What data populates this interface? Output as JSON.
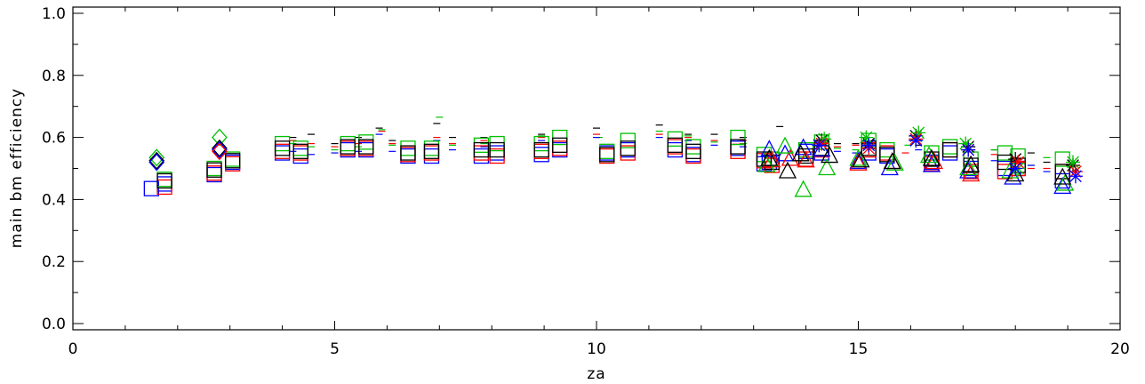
{
  "chart_data": {
    "type": "scatter",
    "title": "",
    "xlabel": "za",
    "ylabel": "main bm efficiency",
    "xlim": [
      0,
      20
    ],
    "ylim": [
      -0.02,
      1.02
    ],
    "xticks": [
      0,
      5,
      10,
      15,
      20
    ],
    "xtick_labels": [
      "0",
      "5",
      "10",
      "15",
      "20"
    ],
    "yticks": [
      0.0,
      0.2,
      0.4,
      0.6,
      0.8,
      1.0
    ],
    "ytick_labels": [
      "0.0",
      "0.2",
      "0.4",
      "0.6",
      "0.8",
      "1.0"
    ],
    "grid": false,
    "colors": {
      "black": "#000000",
      "red": "#ff0000",
      "green": "#00c000",
      "blue": "#0000ff"
    },
    "marker_series": [
      {
        "marker": "square",
        "color": "blue",
        "points": [
          [
            1.5,
            0.435
          ],
          [
            1.75,
            0.45
          ],
          [
            2.7,
            0.48
          ],
          [
            3.05,
            0.52
          ],
          [
            4.0,
            0.55
          ],
          [
            4.35,
            0.54
          ],
          [
            5.25,
            0.56
          ],
          [
            5.6,
            0.56
          ],
          [
            6.4,
            0.54
          ],
          [
            6.85,
            0.54
          ],
          [
            7.8,
            0.54
          ],
          [
            8.1,
            0.55
          ],
          [
            8.95,
            0.545
          ],
          [
            9.3,
            0.56
          ],
          [
            10.2,
            0.55
          ],
          [
            10.6,
            0.56
          ],
          [
            11.5,
            0.56
          ],
          [
            11.85,
            0.545
          ],
          [
            12.7,
            0.565
          ],
          [
            13.2,
            0.515
          ],
          [
            13.3,
            0.52
          ],
          [
            14.0,
            0.555
          ],
          [
            14.3,
            0.55
          ],
          [
            15.2,
            0.55
          ],
          [
            15.55,
            0.54
          ],
          [
            16.4,
            0.52
          ],
          [
            16.75,
            0.55
          ],
          [
            17.15,
            0.5
          ],
          [
            17.8,
            0.5
          ],
          [
            18.05,
            0.5
          ],
          [
            18.9,
            0.46
          ]
        ]
      },
      {
        "marker": "square",
        "color": "red",
        "points": [
          [
            1.75,
            0.44
          ],
          [
            2.7,
            0.485
          ],
          [
            3.05,
            0.515
          ],
          [
            4.0,
            0.555
          ],
          [
            4.35,
            0.55
          ],
          [
            5.25,
            0.565
          ],
          [
            5.6,
            0.565
          ],
          [
            6.4,
            0.545
          ],
          [
            6.85,
            0.55
          ],
          [
            7.8,
            0.55
          ],
          [
            8.1,
            0.54
          ],
          [
            8.95,
            0.555
          ],
          [
            9.3,
            0.565
          ],
          [
            10.2,
            0.54
          ],
          [
            10.6,
            0.55
          ],
          [
            11.5,
            0.57
          ],
          [
            11.85,
            0.54
          ],
          [
            12.7,
            0.555
          ],
          [
            13.2,
            0.525
          ],
          [
            13.35,
            0.51
          ],
          [
            14.0,
            0.53
          ],
          [
            14.3,
            0.56
          ],
          [
            15.2,
            0.56
          ],
          [
            15.55,
            0.55
          ],
          [
            16.4,
            0.515
          ],
          [
            16.75,
            0.56
          ],
          [
            17.15,
            0.49
          ],
          [
            17.8,
            0.49
          ],
          [
            18.05,
            0.5
          ],
          [
            18.9,
            0.49
          ]
        ]
      },
      {
        "marker": "square",
        "color": "green",
        "points": [
          [
            1.75,
            0.465
          ],
          [
            2.7,
            0.5
          ],
          [
            3.05,
            0.53
          ],
          [
            4.0,
            0.58
          ],
          [
            4.35,
            0.565
          ],
          [
            5.25,
            0.58
          ],
          [
            5.6,
            0.585
          ],
          [
            6.4,
            0.565
          ],
          [
            6.85,
            0.565
          ],
          [
            7.8,
            0.575
          ],
          [
            8.1,
            0.58
          ],
          [
            8.95,
            0.58
          ],
          [
            9.3,
            0.6
          ],
          [
            10.2,
            0.555
          ],
          [
            10.6,
            0.59
          ],
          [
            11.5,
            0.595
          ],
          [
            11.85,
            0.57
          ],
          [
            12.7,
            0.6
          ],
          [
            13.2,
            0.545
          ],
          [
            13.35,
            0.53
          ],
          [
            14.0,
            0.56
          ],
          [
            14.3,
            0.585
          ],
          [
            15.2,
            0.59
          ],
          [
            15.55,
            0.56
          ],
          [
            16.4,
            0.55
          ],
          [
            16.75,
            0.57
          ],
          [
            17.15,
            0.53
          ],
          [
            17.8,
            0.55
          ],
          [
            18.05,
            0.54
          ],
          [
            18.9,
            0.53
          ]
        ]
      },
      {
        "marker": "square",
        "color": "black",
        "points": [
          [
            1.75,
            0.46
          ],
          [
            2.7,
            0.495
          ],
          [
            3.05,
            0.525
          ],
          [
            4.0,
            0.565
          ],
          [
            4.35,
            0.555
          ],
          [
            5.25,
            0.57
          ],
          [
            5.6,
            0.57
          ],
          [
            6.4,
            0.55
          ],
          [
            6.85,
            0.555
          ],
          [
            7.8,
            0.56
          ],
          [
            8.1,
            0.56
          ],
          [
            8.95,
            0.56
          ],
          [
            9.3,
            0.575
          ],
          [
            10.2,
            0.545
          ],
          [
            10.6,
            0.565
          ],
          [
            11.5,
            0.575
          ],
          [
            11.85,
            0.555
          ],
          [
            12.7,
            0.57
          ],
          [
            13.2,
            0.53
          ],
          [
            13.35,
            0.52
          ],
          [
            14.0,
            0.54
          ],
          [
            14.3,
            0.565
          ],
          [
            15.2,
            0.565
          ],
          [
            15.55,
            0.545
          ],
          [
            16.4,
            0.53
          ],
          [
            16.75,
            0.56
          ],
          [
            17.15,
            0.51
          ],
          [
            17.8,
            0.52
          ],
          [
            18.05,
            0.51
          ],
          [
            18.9,
            0.49
          ]
        ]
      },
      {
        "marker": "diamond",
        "color": "green",
        "points": [
          [
            1.6,
            0.535
          ],
          [
            2.8,
            0.6
          ]
        ]
      },
      {
        "marker": "diamond",
        "color": "black",
        "points": [
          [
            1.6,
            0.525
          ],
          [
            2.8,
            0.565
          ]
        ]
      },
      {
        "marker": "diamond",
        "color": "blue",
        "points": [
          [
            1.6,
            0.52
          ],
          [
            2.8,
            0.56
          ]
        ]
      },
      {
        "marker": "diamond",
        "color": "red",
        "points": [
          [
            2.8,
            0.555
          ]
        ]
      },
      {
        "marker": "triangle",
        "color": "blue",
        "points": [
          [
            13.3,
            0.56
          ],
          [
            13.6,
            0.545
          ],
          [
            13.95,
            0.565
          ],
          [
            14.3,
            0.56
          ],
          [
            15.0,
            0.52
          ],
          [
            15.6,
            0.5
          ],
          [
            16.4,
            0.51
          ],
          [
            17.1,
            0.49
          ],
          [
            17.95,
            0.47
          ],
          [
            18.9,
            0.44
          ]
        ]
      },
      {
        "marker": "triangle",
        "color": "red",
        "points": [
          [
            13.35,
            0.525
          ],
          [
            13.7,
            0.53
          ],
          [
            14.0,
            0.525
          ],
          [
            15.0,
            0.515
          ],
          [
            15.65,
            0.52
          ],
          [
            16.45,
            0.52
          ],
          [
            17.15,
            0.48
          ]
        ]
      },
      {
        "marker": "triangle",
        "color": "green",
        "points": [
          [
            13.25,
            0.51
          ],
          [
            13.6,
            0.57
          ],
          [
            13.95,
            0.43
          ],
          [
            14.4,
            0.5
          ],
          [
            15.0,
            0.53
          ],
          [
            15.7,
            0.515
          ],
          [
            16.35,
            0.54
          ],
          [
            17.1,
            0.5
          ],
          [
            17.9,
            0.49
          ],
          [
            18.95,
            0.45
          ]
        ]
      },
      {
        "marker": "triangle",
        "color": "black",
        "points": [
          [
            13.3,
            0.53
          ],
          [
            13.65,
            0.49
          ],
          [
            13.9,
            0.545
          ],
          [
            14.45,
            0.54
          ],
          [
            15.05,
            0.525
          ],
          [
            15.65,
            0.52
          ],
          [
            16.4,
            0.53
          ],
          [
            17.15,
            0.51
          ],
          [
            18.0,
            0.48
          ],
          [
            18.9,
            0.47
          ]
        ]
      },
      {
        "marker": "asterisk",
        "color": "black",
        "points": [
          [
            14.3,
            0.59
          ],
          [
            15.2,
            0.58
          ],
          [
            16.1,
            0.605
          ],
          [
            17.1,
            0.57
          ],
          [
            18.0,
            0.53
          ],
          [
            19.1,
            0.51
          ]
        ]
      },
      {
        "marker": "asterisk",
        "color": "green",
        "points": [
          [
            14.35,
            0.595
          ],
          [
            15.15,
            0.6
          ],
          [
            16.15,
            0.615
          ],
          [
            17.05,
            0.58
          ],
          [
            18.05,
            0.5
          ],
          [
            19.1,
            0.52
          ]
        ]
      },
      {
        "marker": "asterisk",
        "color": "red",
        "points": [
          [
            14.3,
            0.58
          ],
          [
            15.2,
            0.565
          ],
          [
            16.1,
            0.595
          ],
          [
            17.1,
            0.56
          ],
          [
            18.05,
            0.52
          ],
          [
            19.15,
            0.49
          ]
        ]
      },
      {
        "marker": "asterisk",
        "color": "blue",
        "points": [
          [
            14.25,
            0.575
          ],
          [
            15.2,
            0.575
          ],
          [
            16.1,
            0.59
          ],
          [
            17.1,
            0.56
          ],
          [
            18.0,
            0.5
          ],
          [
            19.15,
            0.475
          ]
        ]
      }
    ],
    "dash_series": [
      {
        "color": "black",
        "points": [
          [
            4.2,
            0.6
          ],
          [
            4.55,
            0.61
          ],
          [
            5.0,
            0.58
          ],
          [
            5.45,
            0.6
          ],
          [
            5.85,
            0.63
          ],
          [
            6.1,
            0.59
          ],
          [
            6.95,
            0.645
          ],
          [
            7.25,
            0.6
          ],
          [
            7.85,
            0.6
          ],
          [
            8.95,
            0.61
          ],
          [
            10.0,
            0.63
          ],
          [
            11.2,
            0.64
          ],
          [
            11.75,
            0.61
          ],
          [
            12.25,
            0.61
          ],
          [
            12.8,
            0.6
          ],
          [
            13.5,
            0.635
          ],
          [
            14.6,
            0.58
          ],
          [
            14.95,
            0.58
          ],
          [
            16.15,
            0.575
          ],
          [
            17.6,
            0.56
          ],
          [
            18.3,
            0.55
          ],
          [
            18.6,
            0.52
          ]
        ]
      },
      {
        "color": "red",
        "points": [
          [
            4.2,
            0.59
          ],
          [
            4.55,
            0.58
          ],
          [
            5.0,
            0.57
          ],
          [
            5.45,
            0.58
          ],
          [
            5.9,
            0.62
          ],
          [
            6.1,
            0.58
          ],
          [
            6.95,
            0.6
          ],
          [
            7.25,
            0.58
          ],
          [
            7.85,
            0.59
          ],
          [
            8.95,
            0.6
          ],
          [
            10.0,
            0.61
          ],
          [
            11.2,
            0.61
          ],
          [
            11.75,
            0.6
          ],
          [
            12.25,
            0.59
          ],
          [
            12.8,
            0.59
          ],
          [
            14.6,
            0.57
          ],
          [
            14.95,
            0.575
          ],
          [
            15.9,
            0.55
          ],
          [
            17.6,
            0.545
          ],
          [
            18.3,
            0.5
          ],
          [
            18.6,
            0.5
          ]
        ]
      },
      {
        "color": "green",
        "points": [
          [
            4.2,
            0.58
          ],
          [
            4.55,
            0.57
          ],
          [
            5.0,
            0.56
          ],
          [
            5.45,
            0.57
          ],
          [
            5.9,
            0.625
          ],
          [
            6.1,
            0.575
          ],
          [
            7.0,
            0.665
          ],
          [
            7.25,
            0.575
          ],
          [
            7.85,
            0.58
          ],
          [
            8.95,
            0.605
          ],
          [
            10.05,
            0.6
          ],
          [
            11.2,
            0.62
          ],
          [
            11.75,
            0.605
          ],
          [
            12.25,
            0.585
          ],
          [
            12.8,
            0.58
          ],
          [
            14.6,
            0.565
          ],
          [
            14.95,
            0.56
          ],
          [
            15.95,
            0.575
          ],
          [
            17.6,
            0.56
          ],
          [
            18.3,
            0.51
          ],
          [
            18.6,
            0.535
          ]
        ]
      },
      {
        "color": "blue",
        "points": [
          [
            4.2,
            0.555
          ],
          [
            4.55,
            0.545
          ],
          [
            5.0,
            0.55
          ],
          [
            5.45,
            0.555
          ],
          [
            5.85,
            0.61
          ],
          [
            6.1,
            0.555
          ],
          [
            6.95,
            0.59
          ],
          [
            7.25,
            0.56
          ],
          [
            7.85,
            0.57
          ],
          [
            8.95,
            0.59
          ],
          [
            10.0,
            0.6
          ],
          [
            11.2,
            0.6
          ],
          [
            11.75,
            0.59
          ],
          [
            12.25,
            0.575
          ],
          [
            12.8,
            0.57
          ],
          [
            14.6,
            0.555
          ],
          [
            14.95,
            0.55
          ],
          [
            16.15,
            0.56
          ],
          [
            17.6,
            0.525
          ],
          [
            18.3,
            0.51
          ],
          [
            18.6,
            0.49
          ]
        ]
      }
    ]
  }
}
